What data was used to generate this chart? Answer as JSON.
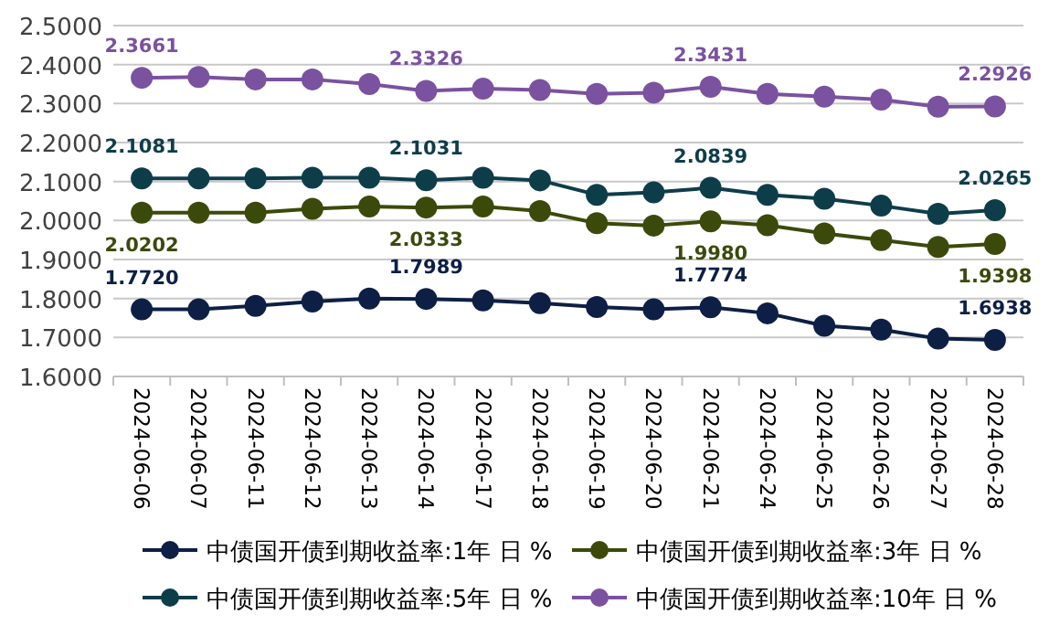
{
  "chart_data": {
    "type": "line",
    "categories": [
      "2024-06-06",
      "2024-06-07",
      "2024-06-11",
      "2024-06-12",
      "2024-06-13",
      "2024-06-14",
      "2024-06-17",
      "2024-06-18",
      "2024-06-19",
      "2024-06-20",
      "2024-06-21",
      "2024-06-24",
      "2024-06-25",
      "2024-06-26",
      "2024-06-27",
      "2024-06-28"
    ],
    "series": [
      {
        "name": "中债国开债到期收益率:1年 日 %",
        "color": "#0d1f45",
        "values": [
          1.772,
          1.772,
          1.781,
          1.792,
          1.8,
          1.7989,
          1.795,
          1.788,
          1.778,
          1.772,
          1.7774,
          1.762,
          1.73,
          1.72,
          1.697,
          1.6938
        ],
        "value_labels": [
          "1.7720",
          null,
          null,
          null,
          null,
          "1.7989",
          null,
          null,
          null,
          null,
          "1.7774",
          null,
          null,
          null,
          null,
          "1.6938"
        ]
      },
      {
        "name": "中债国开债到期收益率:3年 日 %",
        "color": "#3b4a0b",
        "values": [
          2.0202,
          2.02,
          2.02,
          2.03,
          2.036,
          2.0333,
          2.036,
          2.024,
          1.993,
          1.987,
          1.998,
          1.988,
          1.967,
          1.95,
          1.932,
          1.9398
        ],
        "value_labels": [
          "2.0202",
          null,
          null,
          null,
          null,
          "2.0333",
          null,
          null,
          null,
          null,
          "1.9980",
          null,
          null,
          null,
          null,
          "1.9398"
        ]
      },
      {
        "name": "中债国开债到期收益率:5年 日 %",
        "color": "#0e3d4a",
        "values": [
          2.1081,
          2.108,
          2.108,
          2.11,
          2.11,
          2.1031,
          2.11,
          2.103,
          2.066,
          2.072,
          2.0839,
          2.066,
          2.056,
          2.038,
          2.017,
          2.0265
        ],
        "value_labels": [
          "2.1081",
          null,
          null,
          null,
          null,
          "2.1031",
          null,
          null,
          null,
          null,
          "2.0839",
          null,
          null,
          null,
          null,
          "2.0265"
        ]
      },
      {
        "name": "中债国开债到期收益率:10年 日 %",
        "color": "#7a52a0",
        "values": [
          2.3661,
          2.368,
          2.362,
          2.362,
          2.35,
          2.3326,
          2.338,
          2.335,
          2.325,
          2.328,
          2.3431,
          2.325,
          2.318,
          2.31,
          2.292,
          2.2926
        ],
        "value_labels": [
          "2.3661",
          null,
          null,
          null,
          null,
          "2.3326",
          null,
          null,
          null,
          null,
          "2.3431",
          null,
          null,
          null,
          null,
          "2.2926"
        ]
      }
    ],
    "ylim": [
      1.6,
      2.5
    ],
    "yticks": [
      {
        "value": 1.6,
        "label": "1.6000"
      },
      {
        "value": 1.7,
        "label": "1.7000"
      },
      {
        "value": 1.8,
        "label": "1.8000"
      },
      {
        "value": 1.9,
        "label": "1.9000"
      },
      {
        "value": 2.0,
        "label": "2.0000"
      },
      {
        "value": 2.1,
        "label": "2.1000"
      },
      {
        "value": 2.2,
        "label": "2.2000"
      },
      {
        "value": 2.3,
        "label": "2.3000"
      },
      {
        "value": 2.4,
        "label": "2.4000"
      },
      {
        "value": 2.5,
        "label": "2.5000"
      }
    ],
    "grid": "y",
    "legend": "bottom",
    "marker": "circle",
    "line_style": "solid"
  }
}
